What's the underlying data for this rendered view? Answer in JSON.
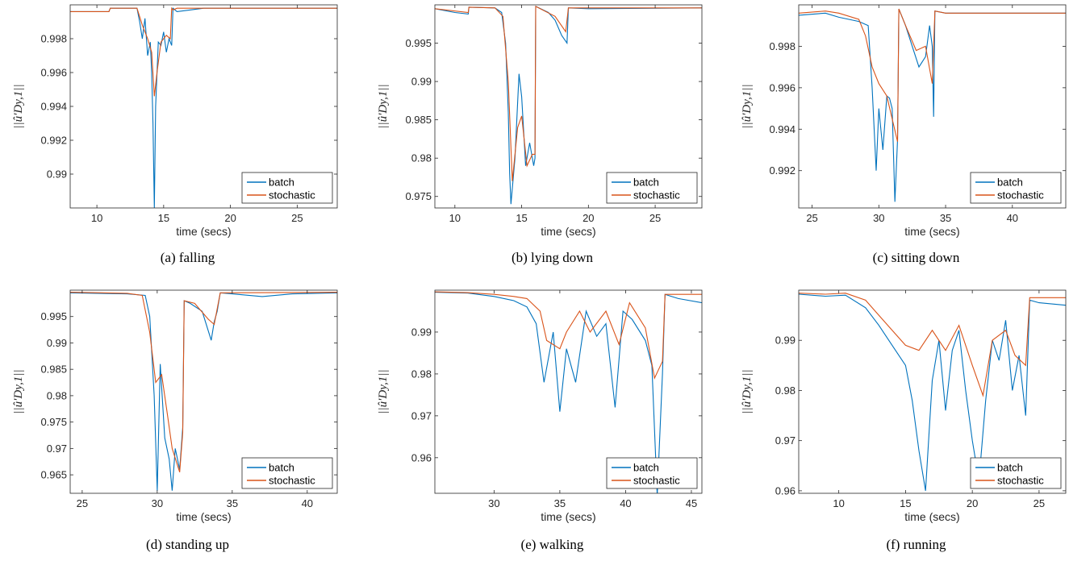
{
  "colors": {
    "batch": "#0072BD",
    "stochastic": "#D95319",
    "axis": "#262626"
  },
  "chart_data": [
    {
      "type": "line",
      "caption": "(a) falling",
      "xlabel": "time (secs)",
      "ylabel": "||û′Dy,1||",
      "xlim": [
        8,
        28
      ],
      "ylim": [
        0.988,
        1.0
      ],
      "xticks": [
        10,
        15,
        20,
        25
      ],
      "yticks": [
        0.99,
        0.992,
        0.994,
        0.996,
        0.998
      ],
      "ytick_labels": [
        "0.99",
        "0.992",
        "0.994",
        "0.996",
        "0.998"
      ],
      "legend": [
        "batch",
        "stochastic"
      ],
      "legend_position": "bottom-right",
      "series": [
        {
          "name": "batch",
          "x": [
            8,
            10,
            10.9,
            11,
            13,
            13.2,
            13.4,
            13.6,
            13.8,
            14.0,
            14.1,
            14.2,
            14.3,
            14.4,
            14.6,
            14.8,
            15.0,
            15.2,
            15.4,
            15.6,
            15.7,
            16,
            17,
            18,
            20,
            25,
            28
          ],
          "y": [
            0.9996,
            0.9996,
            0.9996,
            0.9998,
            0.9998,
            0.999,
            0.998,
            0.9992,
            0.997,
            0.9978,
            0.996,
            0.993,
            0.988,
            0.994,
            0.9978,
            0.9976,
            0.9984,
            0.9972,
            0.998,
            0.9976,
            0.9998,
            0.9996,
            0.9997,
            0.9998,
            0.9998,
            0.9998,
            0.9998
          ]
        },
        {
          "name": "stochastic",
          "x": [
            8,
            10.9,
            11,
            13,
            13.4,
            13.8,
            14.1,
            14.3,
            14.5,
            14.8,
            15.2,
            15.5,
            15.6,
            15.7,
            16,
            20,
            28
          ],
          "y": [
            0.9996,
            0.9996,
            0.9998,
            0.9998,
            0.9988,
            0.998,
            0.9972,
            0.9946,
            0.996,
            0.9978,
            0.9982,
            0.998,
            0.9998,
            0.9997,
            0.9998,
            0.9998,
            0.9998
          ]
        }
      ]
    },
    {
      "type": "line",
      "caption": "(b) lying down",
      "xlabel": "time (secs)",
      "ylabel": "||û′Dy,1||",
      "xlim": [
        8.5,
        28.5
      ],
      "ylim": [
        0.9735,
        1.0
      ],
      "xticks": [
        10,
        15,
        20,
        25
      ],
      "yticks": [
        0.975,
        0.98,
        0.985,
        0.99,
        0.995
      ],
      "ytick_labels": [
        "0.975",
        "0.98",
        "0.985",
        "0.99",
        "0.995"
      ],
      "legend": [
        "batch",
        "stochastic"
      ],
      "legend_position": "bottom-right",
      "series": [
        {
          "name": "batch",
          "x": [
            8.5,
            10,
            11,
            11.05,
            13,
            13.5,
            13.8,
            14.0,
            14.1,
            14.2,
            14.5,
            14.8,
            15.0,
            15.3,
            15.6,
            15.9,
            16.0,
            16.05,
            17,
            17.5,
            18,
            18.4,
            18.5,
            20,
            28.5
          ],
          "y": [
            0.9995,
            0.999,
            0.9988,
            0.9997,
            0.9996,
            0.999,
            0.995,
            0.986,
            0.978,
            0.974,
            0.98,
            0.991,
            0.988,
            0.979,
            0.982,
            0.979,
            0.98,
            0.9998,
            0.999,
            0.998,
            0.996,
            0.995,
            0.9996,
            0.9995,
            0.9996
          ]
        },
        {
          "name": "stochastic",
          "x": [
            8.5,
            11,
            11.05,
            13,
            13.6,
            14.0,
            14.3,
            14.7,
            15.0,
            15.4,
            15.8,
            16.0,
            16.05,
            17.5,
            18.3,
            18.5,
            28.5
          ],
          "y": [
            0.9995,
            0.999,
            0.9997,
            0.9996,
            0.9985,
            0.99,
            0.977,
            0.984,
            0.9855,
            0.979,
            0.9805,
            0.9805,
            0.9998,
            0.9985,
            0.9965,
            0.9996,
            0.9996
          ]
        }
      ]
    },
    {
      "type": "line",
      "caption": "(c) sitting down",
      "xlabel": "time (secs)",
      "ylabel": "||û′Dy,1||",
      "xlim": [
        24,
        44
      ],
      "ylim": [
        0.9902,
        1.0
      ],
      "xticks": [
        25,
        30,
        35,
        40
      ],
      "yticks": [
        0.992,
        0.994,
        0.996,
        0.998
      ],
      "ytick_labels": [
        "0.992",
        "0.994",
        "0.996",
        "0.998"
      ],
      "legend": [
        "batch",
        "stochastic"
      ],
      "legend_position": "bottom-right",
      "series": [
        {
          "name": "batch",
          "x": [
            24,
            26,
            27,
            28.5,
            29.2,
            29.5,
            29.8,
            30.0,
            30.3,
            30.6,
            30.8,
            31.0,
            31.2,
            31.4,
            31.5,
            32,
            32.5,
            33,
            33.5,
            33.8,
            34.0,
            34.1,
            34.2,
            35,
            44
          ],
          "y": [
            0.9995,
            0.9996,
            0.9994,
            0.9992,
            0.999,
            0.996,
            0.992,
            0.995,
            0.993,
            0.9956,
            0.9955,
            0.995,
            0.9905,
            0.9935,
            0.9998,
            0.999,
            0.998,
            0.997,
            0.9975,
            0.999,
            0.998,
            0.9946,
            0.9997,
            0.9996,
            0.9996
          ]
        },
        {
          "name": "stochastic",
          "x": [
            24,
            26,
            27,
            28.5,
            29.0,
            29.5,
            30.0,
            30.6,
            31.0,
            31.4,
            31.5,
            32,
            32.8,
            33.5,
            34.0,
            34.2,
            35,
            44
          ],
          "y": [
            0.9996,
            0.9997,
            0.9996,
            0.9993,
            0.9985,
            0.997,
            0.9962,
            0.9956,
            0.9945,
            0.9934,
            0.9998,
            0.999,
            0.9978,
            0.998,
            0.9962,
            0.9997,
            0.9996,
            0.9996
          ]
        }
      ]
    },
    {
      "type": "line",
      "caption": "(d) standing up",
      "xlabel": "time (secs)",
      "ylabel": "||û′Dy,1||",
      "xlim": [
        24.2,
        42
      ],
      "ylim": [
        0.9615,
        1.0
      ],
      "xticks": [
        25,
        30,
        35,
        40
      ],
      "yticks": [
        0.965,
        0.97,
        0.975,
        0.98,
        0.985,
        0.99,
        0.995
      ],
      "ytick_labels": [
        "0.965",
        "0.97",
        "0.975",
        "0.98",
        "0.985",
        "0.99",
        "0.995"
      ],
      "legend": [
        "batch",
        "stochastic"
      ],
      "legend_position": "bottom-right",
      "series": [
        {
          "name": "batch",
          "x": [
            24.2,
            26,
            28,
            29.2,
            29.5,
            29.8,
            30.0,
            30.2,
            30.5,
            30.8,
            31.0,
            31.2,
            31.5,
            31.7,
            31.8,
            32.2,
            33,
            33.6,
            33.8,
            34.0,
            34.2,
            35,
            37,
            39,
            42
          ],
          "y": [
            0.9995,
            0.9994,
            0.9993,
            0.999,
            0.995,
            0.98,
            0.962,
            0.986,
            0.972,
            0.968,
            0.962,
            0.97,
            0.966,
            0.974,
            0.998,
            0.9975,
            0.996,
            0.9905,
            0.994,
            0.996,
            0.9995,
            0.9993,
            0.9988,
            0.9993,
            0.9995
          ]
        },
        {
          "name": "stochastic",
          "x": [
            24.2,
            28,
            29.0,
            29.5,
            29.9,
            30.3,
            30.7,
            31.0,
            31.5,
            31.7,
            31.8,
            32.5,
            33.4,
            33.8,
            34.2,
            42
          ],
          "y": [
            0.9996,
            0.9994,
            0.999,
            0.992,
            0.9825,
            0.984,
            0.976,
            0.97,
            0.9655,
            0.973,
            0.998,
            0.9975,
            0.9945,
            0.9935,
            0.9995,
            0.9996
          ]
        }
      ]
    },
    {
      "type": "line",
      "caption": "(e) walking",
      "xlabel": "time (secs)",
      "ylabel": "||û′Dy,1||",
      "xlim": [
        25.5,
        45.8
      ],
      "ylim": [
        0.9515,
        1.0
      ],
      "xticks": [
        30,
        35,
        40,
        45
      ],
      "yticks": [
        0.96,
        0.97,
        0.98,
        0.99
      ],
      "ytick_labels": [
        "0.96",
        "0.97",
        "0.98",
        "0.99"
      ],
      "legend": [
        "batch",
        "stochastic"
      ],
      "legend_position": "bottom-right",
      "series": [
        {
          "name": "batch",
          "x": [
            25.5,
            28,
            30,
            31.5,
            32.5,
            33.2,
            33.8,
            34.5,
            35.0,
            35.5,
            36.2,
            37.0,
            37.8,
            38.5,
            39.2,
            39.8,
            40.5,
            41.5,
            42.0,
            42.4,
            42.8,
            43.0,
            44,
            45.8
          ],
          "y": [
            0.9995,
            0.9993,
            0.9985,
            0.9975,
            0.996,
            0.992,
            0.978,
            0.99,
            0.971,
            0.986,
            0.978,
            0.995,
            0.989,
            0.992,
            0.972,
            0.995,
            0.993,
            0.988,
            0.982,
            0.951,
            0.98,
            0.999,
            0.998,
            0.997
          ]
        },
        {
          "name": "stochastic",
          "x": [
            25.5,
            28,
            30,
            31.5,
            32.5,
            33.5,
            34.0,
            35.0,
            35.5,
            36.5,
            37.3,
            38.5,
            39.5,
            40.3,
            41.5,
            42.2,
            42.8,
            43.0,
            45.8
          ],
          "y": [
            0.9996,
            0.9994,
            0.999,
            0.9985,
            0.998,
            0.995,
            0.988,
            0.986,
            0.99,
            0.995,
            0.99,
            0.995,
            0.987,
            0.997,
            0.991,
            0.979,
            0.983,
            0.999,
            0.999
          ]
        }
      ]
    },
    {
      "type": "line",
      "caption": "(f) running",
      "xlabel": "time (secs)",
      "ylabel": "||û′Dy,1||",
      "xlim": [
        7,
        27
      ],
      "ylim": [
        0.9595,
        1.0
      ],
      "xticks": [
        10,
        15,
        20,
        25
      ],
      "yticks": [
        0.96,
        0.97,
        0.98,
        0.99
      ],
      "ytick_labels": [
        "0.96",
        "0.97",
        "0.98",
        "0.99"
      ],
      "legend": [
        "batch",
        "stochastic"
      ],
      "legend_position": "bottom-right",
      "series": [
        {
          "name": "batch",
          "x": [
            7,
            9,
            10.5,
            12,
            13,
            14,
            15,
            15.5,
            16.0,
            16.5,
            17.0,
            17.5,
            18.0,
            18.5,
            19.0,
            19.5,
            20.0,
            20.5,
            21.0,
            21.5,
            22.0,
            22.5,
            23.0,
            23.5,
            24.0,
            24.3,
            25,
            27
          ],
          "y": [
            0.9992,
            0.9988,
            0.999,
            0.9965,
            0.993,
            0.989,
            0.985,
            0.978,
            0.968,
            0.96,
            0.982,
            0.99,
            0.976,
            0.988,
            0.992,
            0.98,
            0.97,
            0.962,
            0.978,
            0.99,
            0.986,
            0.994,
            0.98,
            0.987,
            0.975,
            0.998,
            0.9975,
            0.997
          ]
        },
        {
          "name": "stochastic",
          "x": [
            7,
            9,
            10.5,
            12,
            13,
            14,
            15,
            16,
            17,
            18,
            19,
            20,
            20.8,
            21.5,
            22.5,
            23.2,
            24.0,
            24.3,
            27
          ],
          "y": [
            0.9994,
            0.9992,
            0.9994,
            0.998,
            0.995,
            0.992,
            0.989,
            0.988,
            0.992,
            0.988,
            0.993,
            0.985,
            0.979,
            0.99,
            0.992,
            0.987,
            0.985,
            0.9985,
            0.9985
          ]
        }
      ]
    }
  ]
}
